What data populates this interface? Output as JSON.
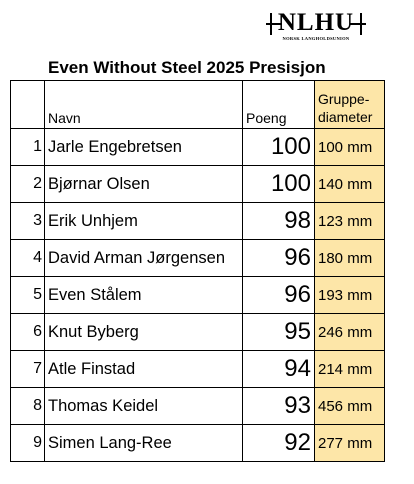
{
  "logo": {
    "text": "NLHU",
    "subtext": "NORSK LANGHOLDSUNION"
  },
  "title": "Even Without Steel 2025 Presisjon",
  "headers": {
    "number": "",
    "name": "Navn",
    "score": "Poeng",
    "diameter": "Gruppe-diameter"
  },
  "rows": [
    {
      "rank": "1",
      "name": "Jarle Engebretsen",
      "score": "100",
      "diameter": "100 mm"
    },
    {
      "rank": "2",
      "name": "Bjørnar Olsen",
      "score": "100",
      "diameter": "140 mm"
    },
    {
      "rank": "3",
      "name": "Erik Unhjem",
      "score": "98",
      "diameter": "123 mm"
    },
    {
      "rank": "4",
      "name": "David Arman Jørgensen",
      "score": "96",
      "diameter": "180 mm"
    },
    {
      "rank": "5",
      "name": "Even Stålem",
      "score": "96",
      "diameter": "193 mm"
    },
    {
      "rank": "6",
      "name": "Knut Byberg",
      "score": "95",
      "diameter": "246 mm"
    },
    {
      "rank": "7",
      "name": "Atle Finstad",
      "score": "94",
      "diameter": "214 mm"
    },
    {
      "rank": "8",
      "name": "Thomas Keidel",
      "score": "93",
      "diameter": "456 mm"
    },
    {
      "rank": "9",
      "name": "Simen Lang-Ree",
      "score": "92",
      "diameter": "277 mm"
    }
  ],
  "colors": {
    "diameter_fill": "#fde6a8",
    "border": "#000000"
  }
}
